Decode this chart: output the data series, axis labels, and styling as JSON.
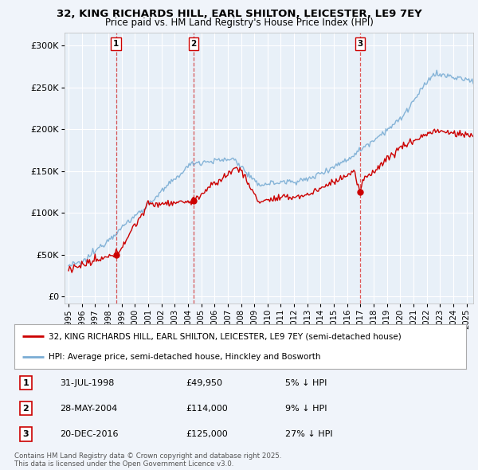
{
  "title1": "32, KING RICHARDS HILL, EARL SHILTON, LEICESTER, LE9 7EY",
  "title2": "Price paid vs. HM Land Registry's House Price Index (HPI)",
  "yticks": [
    0,
    50000,
    100000,
    150000,
    200000,
    250000,
    300000
  ],
  "ytick_labels": [
    "£0",
    "£50K",
    "£100K",
    "£150K",
    "£200K",
    "£250K",
    "£300K"
  ],
  "sale_prices": [
    49950,
    114000,
    125000
  ],
  "sale_labels": [
    "1",
    "2",
    "3"
  ],
  "legend_property_label": "32, KING RICHARDS HILL, EARL SHILTON, LEICESTER, LE9 7EY (semi-detached house)",
  "legend_hpi_label": "HPI: Average price, semi-detached house, Hinckley and Bosworth",
  "property_color": "#cc0000",
  "hpi_color": "#7aadd4",
  "vline_color": "#cc0000",
  "background_color": "#f0f4fa",
  "plot_bg_color": "#e8f0f8",
  "grid_color": "#ffffff",
  "footer_text": "Contains HM Land Registry data © Crown copyright and database right 2025.\nThis data is licensed under the Open Government Licence v3.0.",
  "xlim_start": 1994.7,
  "xlim_end": 2025.5,
  "ylim_min": -8000,
  "ylim_max": 315000,
  "sale_info": [
    [
      "1",
      "31-JUL-1998",
      "£49,950",
      "5% ↓ HPI"
    ],
    [
      "2",
      "28-MAY-2004",
      "£114,000",
      "9% ↓ HPI"
    ],
    [
      "3",
      "20-DEC-2016",
      "£125,000",
      "27% ↓ HPI"
    ]
  ]
}
